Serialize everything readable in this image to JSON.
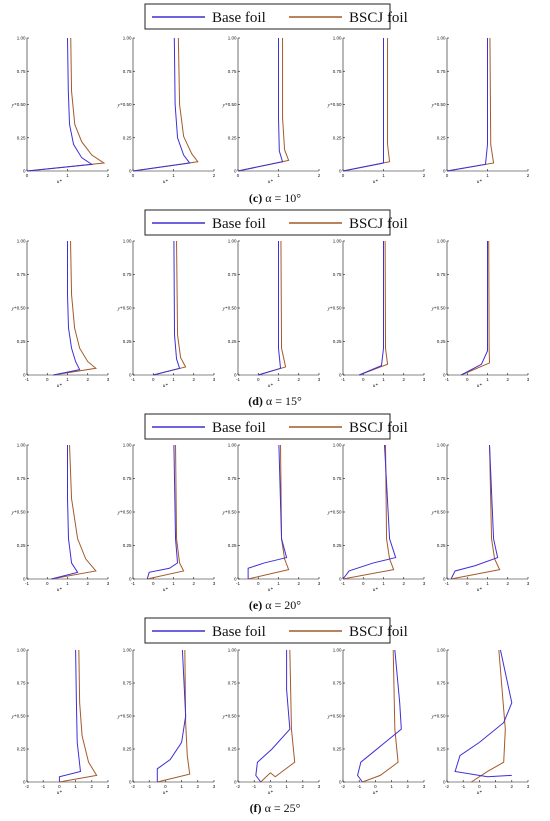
{
  "legend": {
    "base_label": "Base foil",
    "bscj_label": "BSCJ foil"
  },
  "colors": {
    "base": "#3f2fd6",
    "bscj": "#a35a2a"
  },
  "axes": {
    "xlabel": "u*",
    "ylabel": "y*",
    "y_ticks": [
      "0",
      "0.25",
      "0.50",
      "0.75",
      "1.00"
    ]
  },
  "chart_data": [
    {
      "type": "line",
      "caption_letter": "(c)",
      "caption_text": " α = 10°",
      "x_ticks": [
        "0",
        "1",
        "2"
      ],
      "xlim": [
        0,
        2
      ],
      "ylim": [
        0,
        1
      ],
      "plots": [
        {
          "base": [
            [
              0,
              0
            ],
            [
              1.6,
              0.05
            ],
            [
              1.35,
              0.1
            ],
            [
              1.15,
              0.2
            ],
            [
              1.05,
              0.35
            ],
            [
              1.02,
              0.6
            ],
            [
              1.0,
              1.0
            ]
          ],
          "bscj": [
            [
              0,
              0
            ],
            [
              1.9,
              0.06
            ],
            [
              1.6,
              0.12
            ],
            [
              1.35,
              0.22
            ],
            [
              1.18,
              0.35
            ],
            [
              1.1,
              0.6
            ],
            [
              1.08,
              1.0
            ]
          ]
        },
        {
          "base": [
            [
              0,
              0
            ],
            [
              1.4,
              0.06
            ],
            [
              1.25,
              0.12
            ],
            [
              1.1,
              0.25
            ],
            [
              1.04,
              0.5
            ],
            [
              1.02,
              1.0
            ]
          ],
          "bscj": [
            [
              0,
              0
            ],
            [
              1.6,
              0.07
            ],
            [
              1.45,
              0.13
            ],
            [
              1.25,
              0.26
            ],
            [
              1.15,
              0.5
            ],
            [
              1.12,
              1.0
            ]
          ]
        },
        {
          "base": [
            [
              0,
              0
            ],
            [
              1.1,
              0.07
            ],
            [
              1.02,
              0.15
            ],
            [
              1.0,
              0.4
            ],
            [
              1.0,
              1.0
            ]
          ],
          "bscj": [
            [
              0,
              0
            ],
            [
              1.25,
              0.08
            ],
            [
              1.15,
              0.16
            ],
            [
              1.1,
              0.4
            ],
            [
              1.1,
              1.0
            ]
          ]
        },
        {
          "base": [
            [
              0,
              0
            ],
            [
              1.0,
              0.06
            ],
            [
              1.0,
              0.2
            ],
            [
              1.0,
              1.0
            ]
          ],
          "bscj": [
            [
              0,
              0
            ],
            [
              1.15,
              0.07
            ],
            [
              1.1,
              0.2
            ],
            [
              1.1,
              1.0
            ]
          ]
        },
        {
          "base": [
            [
              0,
              0
            ],
            [
              0.95,
              0.05
            ],
            [
              1.0,
              0.2
            ],
            [
              1.0,
              1.0
            ]
          ],
          "bscj": [
            [
              0,
              0
            ],
            [
              1.15,
              0.06
            ],
            [
              1.08,
              0.2
            ],
            [
              1.06,
              1.0
            ]
          ]
        }
      ]
    },
    {
      "type": "line",
      "caption_letter": "(d)",
      "caption_text": " α = 15°",
      "x_ticks": [
        "-1",
        "0",
        "1",
        "2",
        "3"
      ],
      "xlim": [
        -1,
        3
      ],
      "ylim": [
        0,
        1
      ],
      "plots": [
        {
          "base": [
            [
              0.3,
              0
            ],
            [
              1.6,
              0.04
            ],
            [
              1.4,
              0.1
            ],
            [
              1.2,
              0.2
            ],
            [
              1.05,
              0.35
            ],
            [
              1.0,
              0.6
            ],
            [
              1.0,
              1.0
            ]
          ],
          "bscj": [
            [
              0.3,
              0
            ],
            [
              2.4,
              0.05
            ],
            [
              2.0,
              0.1
            ],
            [
              1.6,
              0.2
            ],
            [
              1.35,
              0.35
            ],
            [
              1.2,
              0.6
            ],
            [
              1.15,
              1.0
            ]
          ]
        },
        {
          "base": [
            [
              0.0,
              0
            ],
            [
              1.3,
              0.05
            ],
            [
              1.15,
              0.12
            ],
            [
              1.05,
              0.3
            ],
            [
              1.02,
              1.0
            ]
          ],
          "bscj": [
            [
              0.0,
              0
            ],
            [
              1.6,
              0.06
            ],
            [
              1.35,
              0.13
            ],
            [
              1.2,
              0.3
            ],
            [
              1.15,
              1.0
            ]
          ]
        },
        {
          "base": [
            [
              0.0,
              0
            ],
            [
              1.1,
              0.05
            ],
            [
              1.0,
              0.2
            ],
            [
              1.0,
              1.0
            ]
          ],
          "bscj": [
            [
              0.0,
              0
            ],
            [
              1.35,
              0.06
            ],
            [
              1.15,
              0.2
            ],
            [
              1.12,
              1.0
            ]
          ]
        },
        {
          "base": [
            [
              -0.2,
              0
            ],
            [
              0.9,
              0.07
            ],
            [
              1.0,
              0.2
            ],
            [
              1.0,
              1.0
            ]
          ],
          "bscj": [
            [
              -0.2,
              0
            ],
            [
              1.2,
              0.08
            ],
            [
              1.1,
              0.2
            ],
            [
              1.08,
              1.0
            ]
          ]
        },
        {
          "base": [
            [
              -0.3,
              0
            ],
            [
              0.7,
              0.08
            ],
            [
              1.0,
              0.18
            ],
            [
              1.0,
              1.0
            ]
          ],
          "bscj": [
            [
              -0.3,
              0
            ],
            [
              1.1,
              0.09
            ],
            [
              1.08,
              0.2
            ],
            [
              1.06,
              1.0
            ]
          ]
        }
      ]
    },
    {
      "type": "line",
      "caption_letter": "(e)",
      "caption_text": " α = 20°",
      "x_ticks": [
        "-1",
        "0",
        "1",
        "2",
        "3"
      ],
      "xlim": [
        -1,
        3
      ],
      "ylim": [
        0,
        1
      ],
      "plots": [
        {
          "base": [
            [
              0.2,
              0
            ],
            [
              1.5,
              0.05
            ],
            [
              1.2,
              0.12
            ],
            [
              1.05,
              0.3
            ],
            [
              1.0,
              0.6
            ],
            [
              1.0,
              1.0
            ]
          ],
          "bscj": [
            [
              0.2,
              0
            ],
            [
              2.4,
              0.06
            ],
            [
              1.9,
              0.15
            ],
            [
              1.5,
              0.3
            ],
            [
              1.2,
              0.6
            ],
            [
              1.1,
              1.0
            ]
          ]
        },
        {
          "base": [
            [
              -0.3,
              0
            ],
            [
              -0.2,
              0.05
            ],
            [
              0.8,
              0.08
            ],
            [
              1.2,
              0.12
            ],
            [
              1.1,
              0.3
            ],
            [
              1.02,
              1.0
            ]
          ],
          "bscj": [
            [
              -0.3,
              0
            ],
            [
              1.5,
              0.06
            ],
            [
              1.3,
              0.12
            ],
            [
              1.15,
              0.3
            ],
            [
              1.1,
              1.0
            ]
          ]
        },
        {
          "base": [
            [
              -0.5,
              0
            ],
            [
              -0.5,
              0.08
            ],
            [
              0.3,
              0.12
            ],
            [
              1.4,
              0.16
            ],
            [
              1.15,
              0.3
            ],
            [
              1.02,
              1.0
            ]
          ],
          "bscj": [
            [
              -0.5,
              0
            ],
            [
              1.5,
              0.07
            ],
            [
              1.3,
              0.15
            ],
            [
              1.15,
              0.3
            ],
            [
              1.1,
              1.0
            ]
          ]
        },
        {
          "base": [
            [
              -1.0,
              0
            ],
            [
              -0.7,
              0.06
            ],
            [
              0.5,
              0.12
            ],
            [
              1.6,
              0.16
            ],
            [
              1.3,
              0.3
            ],
            [
              1.05,
              1.0
            ]
          ],
          "bscj": [
            [
              -1.0,
              0
            ],
            [
              1.5,
              0.07
            ],
            [
              1.3,
              0.15
            ],
            [
              1.15,
              0.3
            ],
            [
              1.1,
              1.0
            ]
          ]
        },
        {
          "base": [
            [
              -0.8,
              0
            ],
            [
              -0.6,
              0.06
            ],
            [
              0.4,
              0.1
            ],
            [
              1.5,
              0.16
            ],
            [
              1.3,
              0.3
            ],
            [
              1.1,
              1.0
            ]
          ],
          "bscj": [
            [
              -0.8,
              0
            ],
            [
              1.6,
              0.07
            ],
            [
              1.35,
              0.15
            ],
            [
              1.2,
              0.3
            ],
            [
              1.1,
              1.0
            ]
          ]
        }
      ]
    },
    {
      "type": "line",
      "caption_letter": "(f)",
      "caption_text": " α = 25°",
      "x_ticks": [
        "-2",
        "-1",
        "0",
        "1",
        "2",
        "3"
      ],
      "xlim": [
        -2,
        3
      ],
      "ylim": [
        0,
        1
      ],
      "plots": [
        {
          "base": [
            [
              0.0,
              0
            ],
            [
              0.0,
              0.04
            ],
            [
              1.3,
              0.08
            ],
            [
              1.1,
              0.3
            ],
            [
              1.05,
              0.6
            ],
            [
              1.0,
              1.0
            ]
          ],
          "bscj": [
            [
              0.0,
              0
            ],
            [
              2.3,
              0.05
            ],
            [
              1.8,
              0.15
            ],
            [
              1.4,
              0.35
            ],
            [
              1.25,
              0.6
            ],
            [
              1.2,
              1.0
            ]
          ]
        },
        {
          "base": [
            [
              -0.5,
              0
            ],
            [
              -0.5,
              0.1
            ],
            [
              0.3,
              0.17
            ],
            [
              1.0,
              0.3
            ],
            [
              1.25,
              0.5
            ],
            [
              1.05,
              1.0
            ]
          ],
          "bscj": [
            [
              -0.5,
              0
            ],
            [
              1.5,
              0.06
            ],
            [
              1.35,
              0.2
            ],
            [
              1.25,
              0.45
            ],
            [
              1.2,
              1.0
            ]
          ]
        },
        {
          "base": [
            [
              -0.6,
              0
            ],
            [
              -0.9,
              0.05
            ],
            [
              -0.8,
              0.15
            ],
            [
              0.1,
              0.25
            ],
            [
              1.2,
              0.4
            ],
            [
              1.0,
              0.7
            ],
            [
              1.0,
              1.0
            ]
          ],
          "bscj": [
            [
              -0.6,
              0
            ],
            [
              0.0,
              0.07
            ],
            [
              0.3,
              0.04
            ],
            [
              1.5,
              0.15
            ],
            [
              1.3,
              0.4
            ],
            [
              1.2,
              1.0
            ]
          ]
        },
        {
          "base": [
            [
              -0.8,
              0
            ],
            [
              -1.1,
              0.05
            ],
            [
              -0.9,
              0.15
            ],
            [
              0.4,
              0.28
            ],
            [
              1.6,
              0.4
            ],
            [
              1.5,
              0.6
            ],
            [
              1.2,
              1.0
            ]
          ],
          "bscj": [
            [
              -0.8,
              0
            ],
            [
              0.3,
              0.05
            ],
            [
              1.4,
              0.15
            ],
            [
              1.2,
              0.4
            ],
            [
              1.1,
              1.0
            ]
          ]
        },
        {
          "base": [
            [
              2.0,
              0.05
            ],
            [
              0.5,
              0.04
            ],
            [
              -1.5,
              0.08
            ],
            [
              -1.2,
              0.2
            ],
            [
              0.0,
              0.3
            ],
            [
              1.5,
              0.45
            ],
            [
              2.0,
              0.6
            ],
            [
              1.3,
              1.0
            ]
          ],
          "bscj": [
            [
              -0.5,
              0
            ],
            [
              0.5,
              0.08
            ],
            [
              1.5,
              0.15
            ],
            [
              1.6,
              0.4
            ],
            [
              1.2,
              1.0
            ]
          ]
        }
      ]
    }
  ]
}
